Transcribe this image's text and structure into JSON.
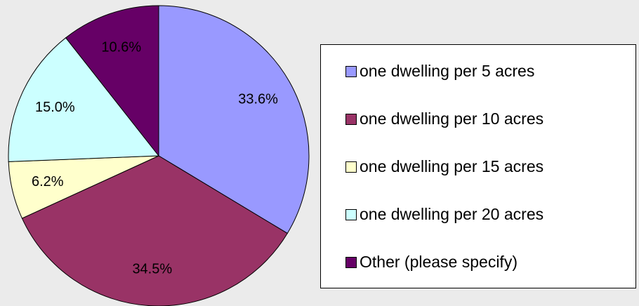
{
  "chart_data": {
    "type": "pie",
    "categories": [
      "one dwelling per 5 acres",
      "one dwelling per 10 acres",
      "one dwelling per 15 acres",
      "one dwelling per 20 acres",
      "Other (please specify)"
    ],
    "values": [
      33.6,
      34.5,
      6.2,
      15.0,
      10.6
    ],
    "value_labels": [
      "33.6%",
      "34.5%",
      "6.2%",
      "15.0%",
      "10.6%"
    ],
    "colors": [
      "#9999ff",
      "#993366",
      "#ffffcc",
      "#ccffff",
      "#660066"
    ],
    "legend": "right"
  }
}
